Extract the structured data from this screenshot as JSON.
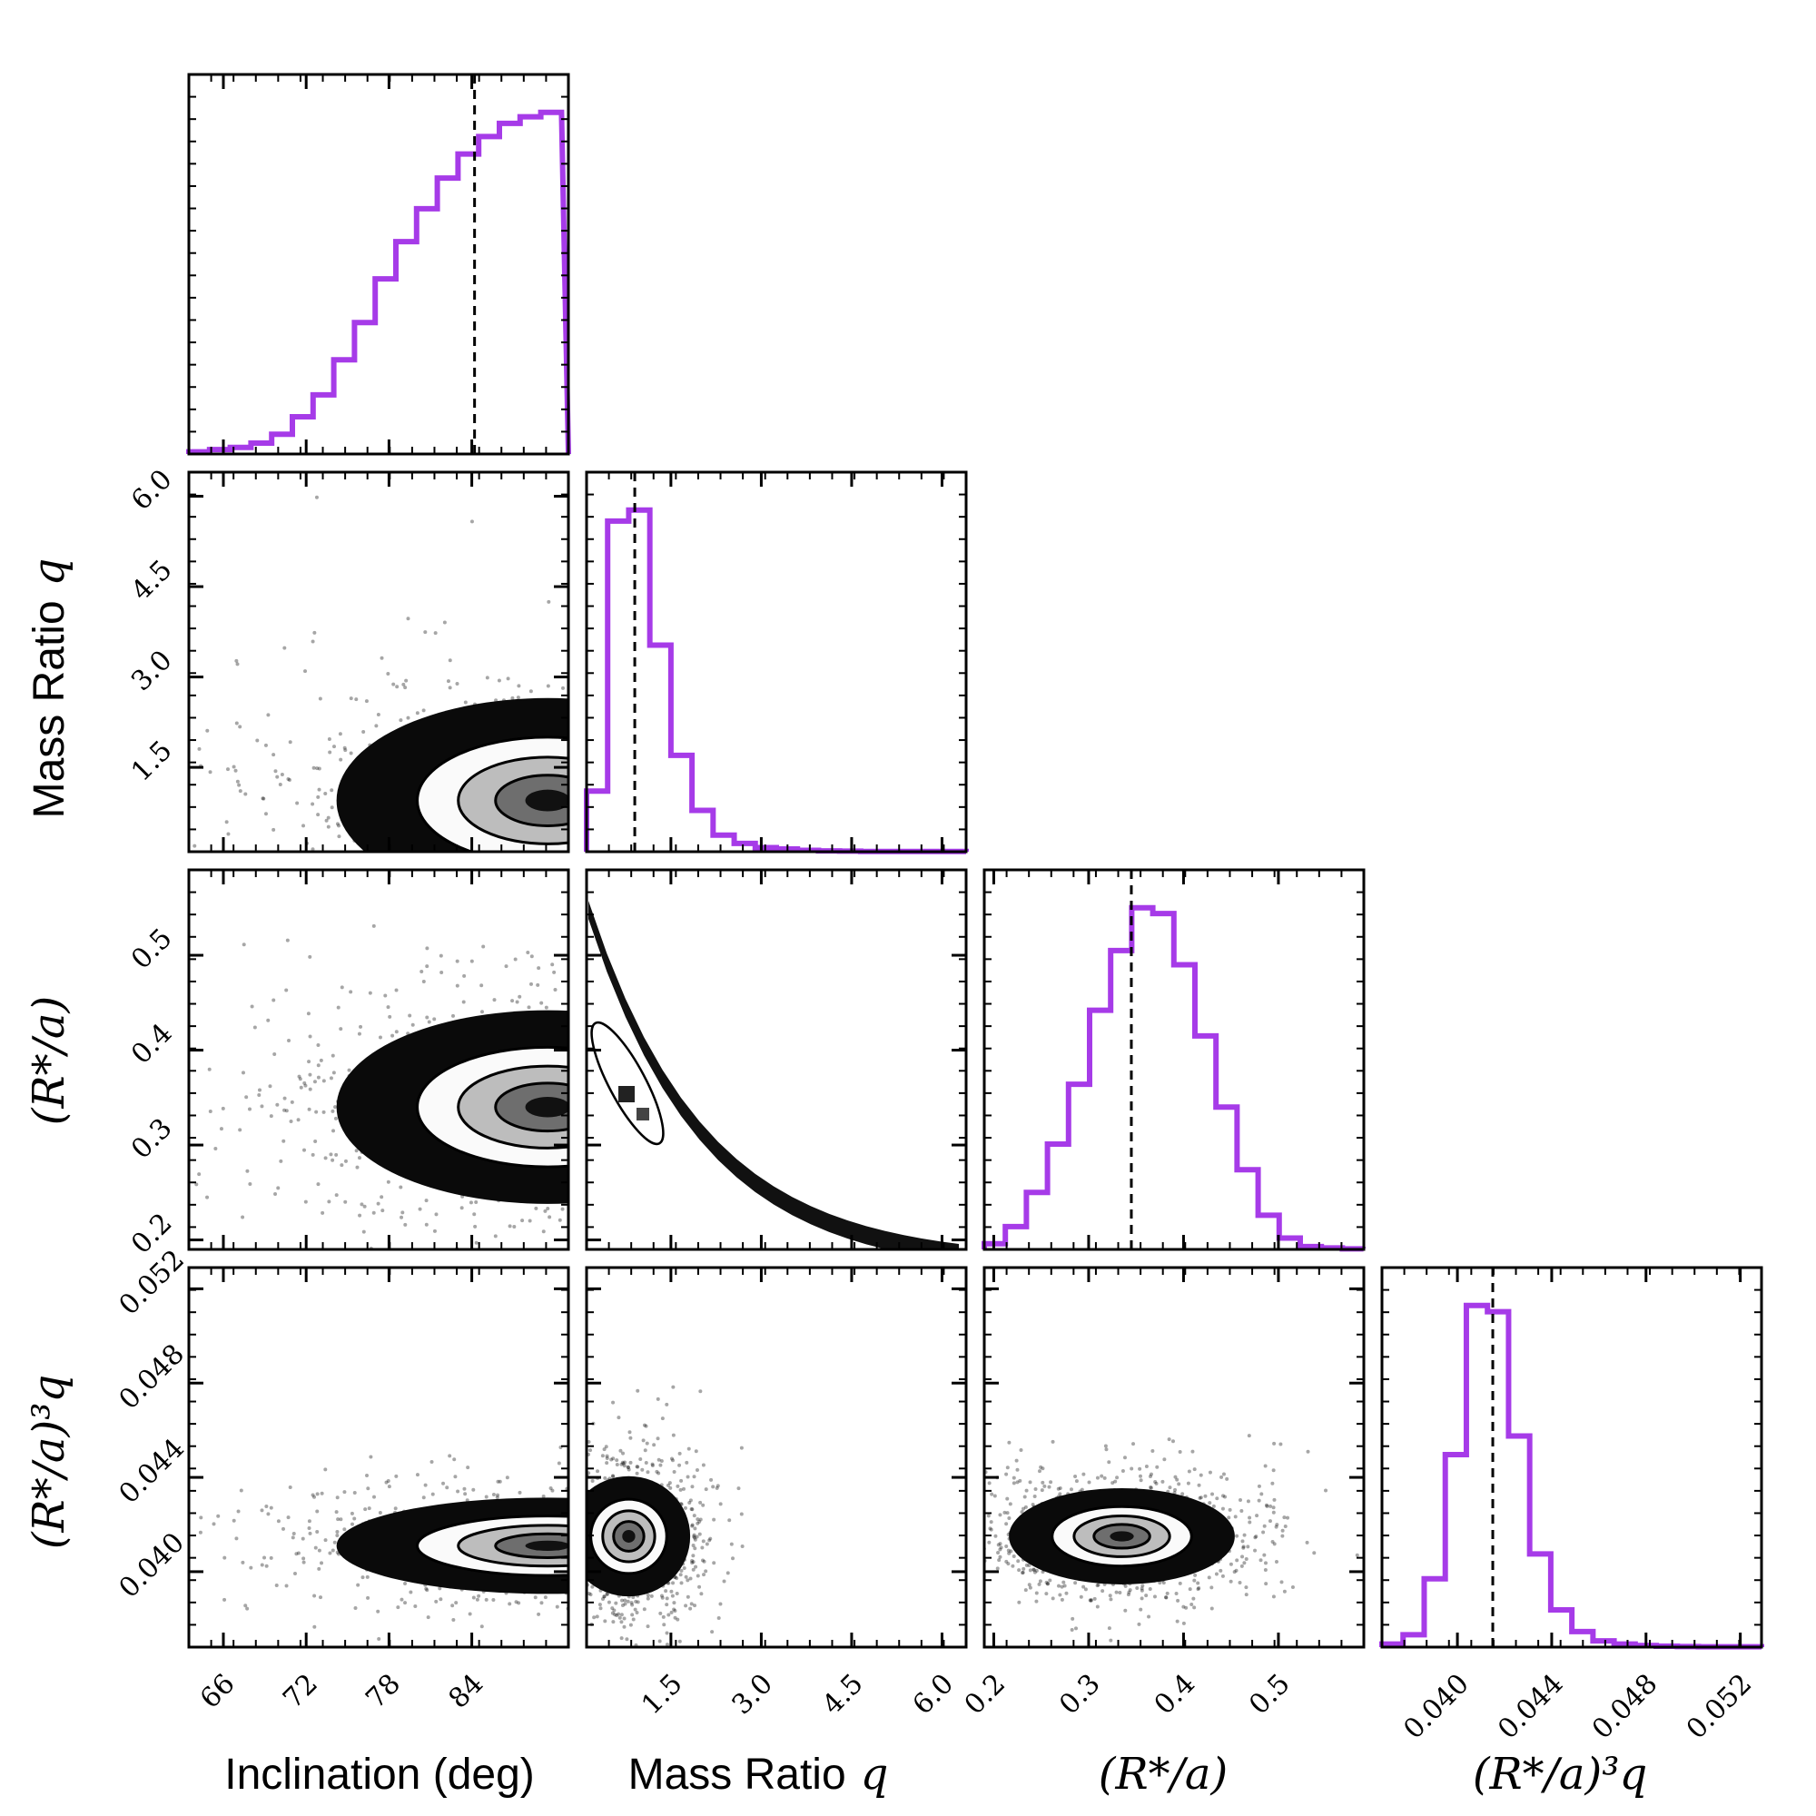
{
  "chart_data": {
    "type": "corner",
    "title": "",
    "params": [
      {
        "key": "inc",
        "label": "Inclination (deg)",
        "range": [
          63.5,
          91
        ],
        "ticks": [
          66,
          72,
          78,
          84
        ],
        "tick_labels": [
          "66",
          "72",
          "78",
          "84"
        ],
        "median": 84.2
      },
      {
        "key": "q",
        "label_text": "Mass Ratio",
        "label_math": "q",
        "range": [
          0.1,
          6.4
        ],
        "ticks": [
          1.5,
          3.0,
          4.5,
          6.0
        ],
        "tick_labels": [
          "1.5",
          "3.0",
          "4.5",
          "6.0"
        ],
        "median": 0.9
      },
      {
        "key": "ra",
        "label": "(R*/a)",
        "range": [
          0.19,
          0.59
        ],
        "ticks": [
          0.2,
          0.3,
          0.4,
          0.5
        ],
        "tick_labels": [
          "0.2",
          "0.3",
          "0.4",
          "0.5"
        ],
        "median": 0.345
      },
      {
        "key": "raq",
        "label": "(R*/a)³q",
        "range": [
          0.0368,
          0.0529
        ],
        "ticks": [
          0.04,
          0.044,
          0.048,
          0.052
        ],
        "tick_labels": [
          "0.040",
          "0.044",
          "0.048",
          "0.052"
        ],
        "median": 0.0415
      }
    ],
    "histograms": [
      {
        "param": "inc",
        "bin_start": 63.5,
        "bin_width": 1.5,
        "counts": [
          1,
          2,
          3,
          5,
          9,
          17,
          27,
          43,
          60,
          80,
          97,
          112,
          126,
          137,
          145,
          151,
          154,
          156
        ]
      },
      {
        "param": "q",
        "bin_start": 0.1,
        "bin_width": 0.35,
        "counts": [
          22,
          120,
          124,
          75,
          35,
          15,
          6,
          3,
          1.5,
          1,
          0.5,
          0.3,
          0.2,
          0.1,
          0.1,
          0.1,
          0.1,
          0.1
        ]
      },
      {
        "param": "ra",
        "bin_start": 0.19,
        "bin_width": 0.0222,
        "counts": [
          2,
          8,
          20,
          37,
          58,
          84,
          105,
          120,
          118,
          100,
          75,
          50,
          28,
          12,
          4,
          1,
          0.5,
          0.2
        ]
      },
      {
        "param": "raq",
        "bin_start": 0.0368,
        "bin_width": 0.000895,
        "counts": [
          1,
          4,
          22,
          62,
          110,
          108,
          68,
          30,
          12,
          5,
          2,
          1,
          0.5,
          0.3,
          0.2,
          0.1,
          0.1,
          0.1
        ]
      }
    ],
    "pairs": [
      {
        "x": "inc",
        "y": "q",
        "peak": [
          89.5,
          0.95
        ],
        "extent": [
          9.0,
          1.0
        ]
      },
      {
        "x": "inc",
        "y": "ra",
        "peak": [
          89.5,
          0.34
        ],
        "extent": [
          9.0,
          0.06
        ]
      },
      {
        "x": "q",
        "y": "ra",
        "peak": [
          0.9,
          0.36
        ],
        "extent": [
          0.5,
          0.03
        ]
      },
      {
        "x": "inc",
        "y": "raq",
        "peak": [
          89.5,
          0.0411
        ],
        "extent": [
          9.0,
          0.0012
        ]
      },
      {
        "x": "q",
        "y": "raq",
        "peak": [
          0.8,
          0.0415
        ],
        "extent": [
          0.6,
          0.0015
        ]
      },
      {
        "x": "ra",
        "y": "raq",
        "peak": [
          0.335,
          0.0415
        ],
        "extent": [
          0.07,
          0.0012
        ]
      }
    ],
    "histogram_color": "#a63be8",
    "median_line": "dashed black",
    "point_color": "#000000"
  }
}
